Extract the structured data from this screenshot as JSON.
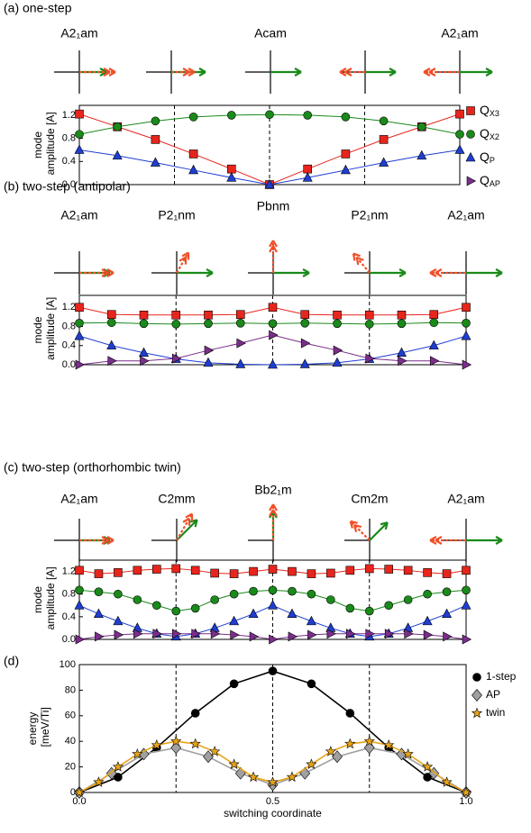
{
  "chart_data": [
    {
      "type": "line",
      "title": "(a) one-step",
      "structures": [
        "A2₁am",
        null,
        "Acam",
        null,
        "A2₁am"
      ],
      "ylabel": "mode amplitude [A]",
      "xlim": [
        0,
        1
      ],
      "ylim": [
        0,
        1.37
      ],
      "yticks": [
        {
          "value": 0,
          "label": "0.0"
        },
        0.4,
        0.8,
        1.2
      ],
      "vlines": [
        0.25,
        0.5,
        0.75
      ],
      "x": [
        0,
        0.1,
        0.2,
        0.3,
        0.4,
        0.5,
        0.6,
        0.7,
        0.8,
        0.9,
        1
      ],
      "series": [
        {
          "name": "QX3",
          "color": "#e8251c",
          "marker": "square",
          "values": [
            1.22,
            1.0,
            0.78,
            0.53,
            0.27,
            0,
            0.27,
            0.53,
            0.78,
            1.0,
            1.22
          ]
        },
        {
          "name": "QX2",
          "color": "#1a8a1a",
          "marker": "circle",
          "values": [
            0.87,
            1.0,
            1.1,
            1.17,
            1.2,
            1.21,
            1.2,
            1.17,
            1.1,
            1.0,
            0.87
          ]
        },
        {
          "name": "QP",
          "color": "#1f3ed1",
          "marker": "triangle",
          "values": [
            0.6,
            0.5,
            0.38,
            0.25,
            0.12,
            0,
            0.12,
            0.25,
            0.38,
            0.5,
            0.6
          ]
        },
        {
          "name": "QAP",
          "color": "#7b2d8b",
          "marker": "triangle-right",
          "values": [
            null,
            null,
            null,
            null,
            null,
            null,
            null,
            null,
            null,
            null,
            null
          ]
        }
      ]
    },
    {
      "type": "line",
      "title": "(b) two-step (antipolar)",
      "structures": [
        "A2₁am",
        "P2₁nm",
        "Pbnm",
        "P2₁nm",
        "A2₁am"
      ],
      "ylabel": "mode amplitude [A]",
      "xlim": [
        0,
        1
      ],
      "ylim": [
        0,
        1.45
      ],
      "yticks": [
        {
          "value": 0,
          "label": "0.0"
        },
        0.4,
        0.8,
        1.2
      ],
      "vlines": [
        0.25,
        0.5,
        0.75
      ],
      "x": [
        0,
        0.0833,
        0.1667,
        0.25,
        0.3333,
        0.4167,
        0.5,
        0.5833,
        0.6667,
        0.75,
        0.8333,
        0.9167,
        1
      ],
      "series": [
        {
          "name": "QX3",
          "color": "#e8251c",
          "marker": "square",
          "values": [
            1.2,
            1.05,
            1.04,
            1.04,
            1.04,
            1.05,
            1.2,
            1.05,
            1.04,
            1.04,
            1.04,
            1.05,
            1.2
          ]
        },
        {
          "name": "QX2",
          "color": "#1a8a1a",
          "marker": "circle",
          "values": [
            0.87,
            0.88,
            0.86,
            0.85,
            0.86,
            0.87,
            0.86,
            0.87,
            0.86,
            0.85,
            0.86,
            0.88,
            0.87
          ]
        },
        {
          "name": "QP",
          "color": "#1f3ed1",
          "marker": "triangle",
          "values": [
            0.6,
            0.4,
            0.25,
            0.12,
            0.04,
            0.01,
            0,
            0.01,
            0.04,
            0.12,
            0.25,
            0.4,
            0.6
          ]
        },
        {
          "name": "QAP",
          "color": "#7b2d8b",
          "marker": "triangle-right",
          "values": [
            0,
            0.08,
            0.08,
            0.13,
            0.3,
            0.45,
            0.62,
            0.45,
            0.3,
            0.13,
            0.08,
            0.08,
            0
          ]
        }
      ]
    },
    {
      "type": "line",
      "title": "(c) two-step (orthorhombic twin)",
      "structures": [
        "A2₁am",
        "C2mm",
        "Bb2₁m",
        "Cm2m",
        "A2₁am"
      ],
      "ylabel": "mode amplitude [A]",
      "xlim": [
        0,
        1
      ],
      "ylim": [
        0,
        1.4
      ],
      "yticks": [
        {
          "value": 0,
          "label": "0.0"
        },
        0.4,
        0.8,
        1.2
      ],
      "vlines": [
        0.25,
        0.5,
        0.75
      ],
      "x": [
        0,
        0.05,
        0.1,
        0.15,
        0.2,
        0.25,
        0.3,
        0.35,
        0.4,
        0.45,
        0.5,
        0.55,
        0.6,
        0.65,
        0.7,
        0.75,
        0.8,
        0.85,
        0.9,
        0.95,
        1
      ],
      "series": [
        {
          "name": "QX3",
          "color": "#e8251c",
          "marker": "square",
          "values": [
            1.22,
            1.16,
            1.18,
            1.22,
            1.24,
            1.25,
            1.22,
            1.17,
            1.16,
            1.2,
            1.24,
            1.2,
            1.16,
            1.17,
            1.22,
            1.25,
            1.24,
            1.22,
            1.18,
            1.16,
            1.22
          ]
        },
        {
          "name": "QX2",
          "color": "#1a8a1a",
          "marker": "circle",
          "values": [
            0.87,
            0.84,
            0.8,
            0.7,
            0.6,
            0.5,
            0.55,
            0.7,
            0.8,
            0.85,
            0.87,
            0.85,
            0.8,
            0.7,
            0.55,
            0.5,
            0.6,
            0.7,
            0.8,
            0.84,
            0.87
          ]
        },
        {
          "name": "QP",
          "color": "#1f3ed1",
          "marker": "triangle",
          "values": [
            0.6,
            0.45,
            0.32,
            0.2,
            0.1,
            0.05,
            0.1,
            0.2,
            0.32,
            0.45,
            0.6,
            0.45,
            0.32,
            0.2,
            0.1,
            0.05,
            0.1,
            0.2,
            0.32,
            0.45,
            0.6
          ]
        },
        {
          "name": "QAP",
          "color": "#7b2d8b",
          "marker": "triangle-right",
          "values": [
            0,
            0.05,
            0.08,
            0.1,
            0.1,
            0.1,
            0.1,
            0.1,
            0.08,
            0.05,
            0,
            0.05,
            0.08,
            0.1,
            0.1,
            0.1,
            0.1,
            0.1,
            0.08,
            0.05,
            0
          ]
        }
      ]
    },
    {
      "type": "line",
      "title": "(d)",
      "ylabel": "energy [meV/Ti]",
      "xlabel": "switching coordinate",
      "xlim": [
        0,
        1
      ],
      "ylim": [
        0,
        100
      ],
      "xticks": [
        {
          "value": 0,
          "label": "0.0"
        },
        {
          "value": 0.5,
          "label": "0.5"
        },
        {
          "value": 1,
          "label": "1.0"
        }
      ],
      "yticks": [
        0,
        20,
        40,
        60,
        80,
        100
      ],
      "vlines": [
        0.25,
        0.5,
        0.75
      ],
      "series": [
        {
          "name": "1-step",
          "color": "#000000",
          "marker": "circle",
          "x": [
            0,
            0.1,
            0.2,
            0.3,
            0.4,
            0.5,
            0.6,
            0.7,
            0.8,
            0.9,
            1
          ],
          "values": [
            0,
            12,
            35,
            62,
            85,
            95,
            85,
            62,
            35,
            12,
            0
          ]
        },
        {
          "name": "AP",
          "color": "#a0a0a0",
          "marker": "diamond",
          "x": [
            0,
            0.0833,
            0.1667,
            0.25,
            0.3333,
            0.4167,
            0.5,
            0.5833,
            0.6667,
            0.75,
            0.8333,
            0.9167,
            1
          ],
          "values": [
            0,
            15,
            30,
            35,
            28,
            15,
            6,
            15,
            28,
            35,
            30,
            15,
            0
          ]
        },
        {
          "name": "twin",
          "color": "#e8a317",
          "marker": "star",
          "x": [
            0,
            0.05,
            0.1,
            0.15,
            0.2,
            0.25,
            0.3,
            0.35,
            0.4,
            0.45,
            0.5,
            0.55,
            0.6,
            0.65,
            0.7,
            0.75,
            0.8,
            0.85,
            0.9,
            0.95,
            1
          ],
          "values": [
            0,
            8,
            20,
            30,
            37,
            40,
            38,
            32,
            22,
            12,
            8,
            12,
            22,
            32,
            38,
            40,
            37,
            30,
            20,
            8,
            0
          ]
        }
      ]
    }
  ]
}
